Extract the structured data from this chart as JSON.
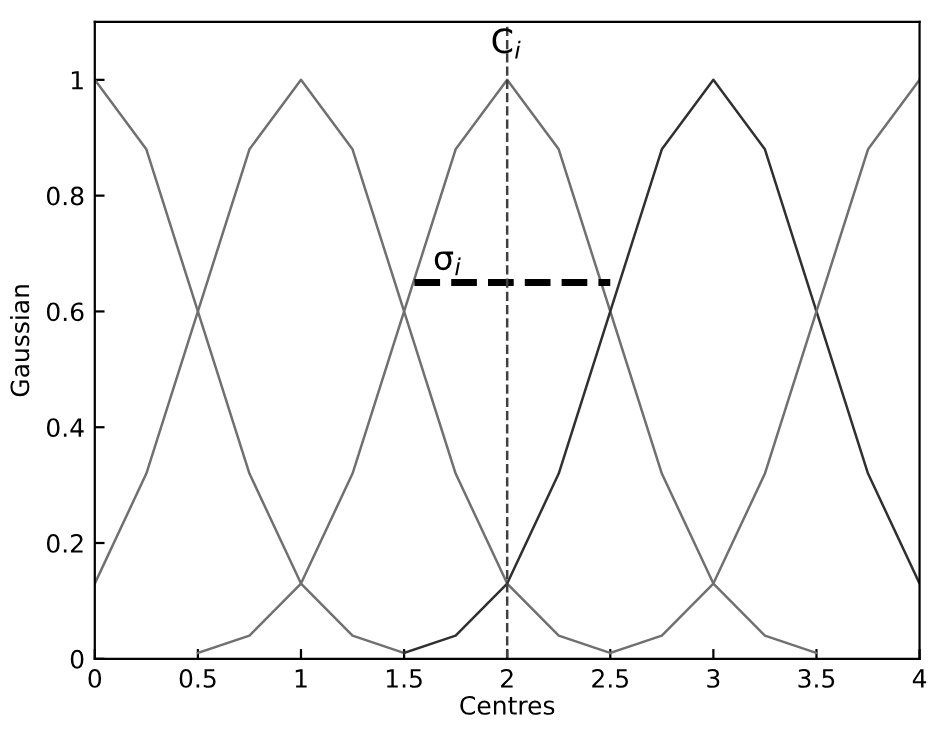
{
  "chart_data": {
    "type": "line",
    "xlabel": "Centres",
    "ylabel": "Gaussian",
    "xlim": [
      0,
      4
    ],
    "ylim": [
      0,
      1.1
    ],
    "xticks": [
      0,
      0.5,
      1,
      1.5,
      2,
      2.5,
      3,
      3.5,
      4
    ],
    "yticks": [
      0,
      0.2,
      0.4,
      0.6,
      0.8,
      1
    ],
    "grid": false,
    "legend": false,
    "marker": "none",
    "line_style": "solid",
    "series": [
      {
        "color": "#707070",
        "x": [
          0,
          0.25,
          0.5,
          0.75,
          1,
          1.25,
          1.5
        ],
        "values": [
          1,
          0.88,
          0.6,
          0.32,
          0.13,
          0.04,
          0.01
        ]
      },
      {
        "color": "#707070",
        "x": [
          0,
          0.25,
          0.5,
          0.75,
          1,
          1.25,
          1.5,
          1.75,
          2,
          2.25,
          2.5
        ],
        "values": [
          0.13,
          0.32,
          0.6,
          0.88,
          1,
          0.88,
          0.6,
          0.32,
          0.13,
          0.04,
          0.01
        ]
      },
      {
        "color": "#707070",
        "x": [
          0.5,
          0.75,
          1,
          1.25,
          1.5,
          1.75,
          2,
          2.25,
          2.5,
          2.75,
          3,
          3.25,
          3.5
        ],
        "values": [
          0.01,
          0.04,
          0.13,
          0.32,
          0.6,
          0.88,
          1,
          0.88,
          0.6,
          0.32,
          0.13,
          0.04,
          0.01
        ]
      },
      {
        "color": "#303030",
        "x": [
          1.5,
          1.75,
          2,
          2.25,
          2.5,
          2.75,
          3,
          3.25,
          3.5,
          3.75,
          4
        ],
        "values": [
          0.01,
          0.04,
          0.13,
          0.32,
          0.6,
          0.88,
          1,
          0.88,
          0.6,
          0.32,
          0.13
        ]
      },
      {
        "color": "#707070",
        "x": [
          2.5,
          2.75,
          3,
          3.25,
          3.5,
          3.75,
          4
        ],
        "values": [
          0.01,
          0.04,
          0.13,
          0.32,
          0.6,
          0.88,
          1
        ]
      },
      {
        "color": "#000000",
        "line_style": "dashed",
        "x": [
          1.55,
          2.5
        ],
        "values": [
          0.65,
          0.65
        ]
      }
    ],
    "ref_lines": [
      {
        "axis": "x",
        "value": 2,
        "color": "#404040",
        "line_style": "dashed"
      }
    ],
    "annotations": [
      "C$_{i}$",
      "σ$_{i}$"
    ]
  }
}
